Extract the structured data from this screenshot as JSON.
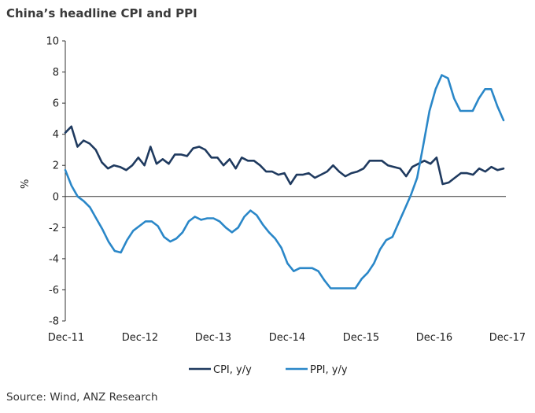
{
  "title": "China’s headline CPI and PPI",
  "source": "Source: Wind, ANZ Research",
  "chart_data": {
    "type": "line",
    "title": "China’s headline CPI and PPI",
    "xlabel": "",
    "ylabel": "%",
    "ylim": [
      -8,
      10
    ],
    "yticks": [
      10,
      8,
      6,
      4,
      2,
      0,
      -2,
      -4,
      -6,
      -8
    ],
    "xtick_labels": [
      "Dec-11",
      "Dec-12",
      "Dec-13",
      "Dec-14",
      "Dec-15",
      "Dec-16",
      "Dec-17"
    ],
    "grid": false,
    "legend_position": "bottom",
    "series": [
      {
        "name": "CPI, y/y",
        "color": "#1f3a5f",
        "values": [
          4.1,
          4.5,
          3.2,
          3.6,
          3.4,
          3.0,
          2.2,
          1.8,
          2.0,
          1.9,
          1.7,
          2.0,
          2.5,
          2.0,
          3.2,
          2.1,
          2.4,
          2.1,
          2.7,
          2.7,
          2.6,
          3.1,
          3.2,
          3.0,
          2.5,
          2.5,
          2.0,
          2.4,
          1.8,
          2.5,
          2.3,
          2.3,
          2.0,
          1.6,
          1.6,
          1.4,
          1.5,
          0.8,
          1.4,
          1.4,
          1.5,
          1.2,
          1.4,
          1.6,
          2.0,
          1.6,
          1.3,
          1.5,
          1.6,
          1.8,
          2.3,
          2.3,
          2.3,
          2.0,
          1.9,
          1.8,
          1.3,
          1.9,
          2.1,
          2.3,
          2.1,
          2.5,
          0.8,
          0.9,
          1.2,
          1.5,
          1.5,
          1.4,
          1.8,
          1.6,
          1.9,
          1.7,
          1.8
        ]
      },
      {
        "name": "PPI, y/y",
        "color": "#2a87c8",
        "values": [
          1.7,
          0.7,
          0.0,
          -0.3,
          -0.7,
          -1.4,
          -2.1,
          -2.9,
          -3.5,
          -3.6,
          -2.8,
          -2.2,
          -1.9,
          -1.6,
          -1.6,
          -1.9,
          -2.6,
          -2.9,
          -2.7,
          -2.3,
          -1.6,
          -1.3,
          -1.5,
          -1.4,
          -1.4,
          -1.6,
          -2.0,
          -2.3,
          -2.0,
          -1.3,
          -0.9,
          -1.2,
          -1.8,
          -2.3,
          -2.7,
          -3.3,
          -4.3,
          -4.8,
          -4.6,
          -4.6,
          -4.6,
          -4.8,
          -5.4,
          -5.9,
          -5.9,
          -5.9,
          -5.9,
          -5.9,
          -5.3,
          -4.9,
          -4.3,
          -3.4,
          -2.8,
          -2.6,
          -1.7,
          -0.8,
          0.1,
          1.2,
          3.3,
          5.5,
          6.9,
          7.8,
          7.6,
          6.3,
          5.5,
          5.5,
          5.5,
          6.3,
          6.9,
          6.9,
          5.8,
          4.9
        ]
      }
    ]
  }
}
